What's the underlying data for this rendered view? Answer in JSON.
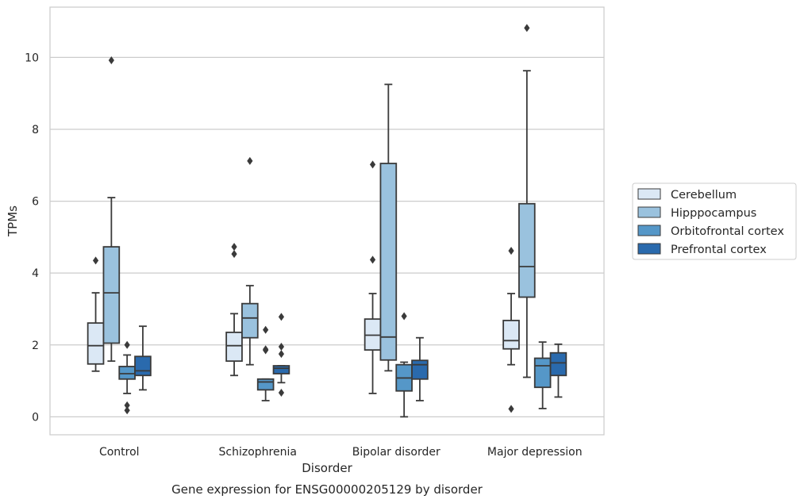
{
  "chart_data": {
    "type": "box",
    "xlabel": "Disorder",
    "ylabel": "TPMs",
    "caption": "Gene expression for ENSG00000205129 by disorder",
    "ylim": [
      -0.5,
      11.4
    ],
    "yticks": [
      0,
      2,
      4,
      6,
      8,
      10
    ],
    "grid": true,
    "legend_position": "right",
    "categories": [
      "Control",
      "Schizophrenia",
      "Bipolar disorder",
      "Major depression"
    ],
    "series": [
      {
        "name": "Cerebellum",
        "color": "#dbe8f5",
        "boxes": [
          {
            "whislo": 1.27,
            "q1": 1.47,
            "med": 1.98,
            "q3": 2.61,
            "whishi": 3.45,
            "fliers": [
              4.35
            ]
          },
          {
            "whislo": 1.15,
            "q1": 1.55,
            "med": 1.98,
            "q3": 2.35,
            "whishi": 2.87,
            "fliers": [
              4.53,
              4.73
            ]
          },
          {
            "whislo": 0.65,
            "q1": 1.86,
            "med": 2.27,
            "q3": 2.72,
            "whishi": 3.43,
            "fliers": [
              4.37,
              7.02
            ]
          },
          {
            "whislo": 1.45,
            "q1": 1.89,
            "med": 2.12,
            "q3": 2.68,
            "whishi": 3.43,
            "fliers": [
              0.22,
              4.62
            ]
          }
        ]
      },
      {
        "name": "Hipppocampus",
        "color": "#9ac2de",
        "boxes": [
          {
            "whislo": 1.55,
            "q1": 2.05,
            "med": 3.45,
            "q3": 4.73,
            "whishi": 6.1,
            "fliers": [
              9.92
            ]
          },
          {
            "whislo": 1.45,
            "q1": 2.2,
            "med": 2.75,
            "q3": 3.15,
            "whishi": 3.65,
            "fliers": [
              7.12
            ]
          },
          {
            "whislo": 1.28,
            "q1": 1.58,
            "med": 2.22,
            "q3": 7.05,
            "whishi": 9.25,
            "fliers": []
          },
          {
            "whislo": 1.1,
            "q1": 3.33,
            "med": 4.18,
            "q3": 5.93,
            "whishi": 9.63,
            "fliers": [
              10.82
            ]
          }
        ]
      },
      {
        "name": "Orbitofrontal cortex",
        "color": "#5597c8",
        "boxes": [
          {
            "whislo": 0.65,
            "q1": 1.05,
            "med": 1.2,
            "q3": 1.4,
            "whishi": 1.72,
            "fliers": [
              0.18,
              0.32,
              2.0
            ]
          },
          {
            "whislo": 0.45,
            "q1": 0.75,
            "med": 0.97,
            "q3": 1.05,
            "whishi": 1.05,
            "fliers": [
              1.85,
              1.88,
              2.42
            ]
          },
          {
            "whislo": 0.0,
            "q1": 0.72,
            "med": 1.08,
            "q3": 1.45,
            "whishi": 1.52,
            "fliers": [
              2.8
            ]
          },
          {
            "whislo": 0.23,
            "q1": 0.82,
            "med": 1.42,
            "q3": 1.63,
            "whishi": 2.08,
            "fliers": []
          }
        ]
      },
      {
        "name": "Prefrontal cortex",
        "color": "#2a6aad",
        "boxes": [
          {
            "whislo": 0.75,
            "q1": 1.15,
            "med": 1.28,
            "q3": 1.68,
            "whishi": 2.52,
            "fliers": []
          },
          {
            "whislo": 0.95,
            "q1": 1.2,
            "med": 1.35,
            "q3": 1.42,
            "whishi": 1.42,
            "fliers": [
              0.67,
              1.75,
              1.95,
              2.78
            ]
          },
          {
            "whislo": 0.45,
            "q1": 1.05,
            "med": 1.45,
            "q3": 1.57,
            "whishi": 2.2,
            "fliers": []
          },
          {
            "whislo": 0.55,
            "q1": 1.15,
            "med": 1.5,
            "q3": 1.78,
            "whishi": 2.02,
            "fliers": []
          }
        ]
      }
    ]
  }
}
